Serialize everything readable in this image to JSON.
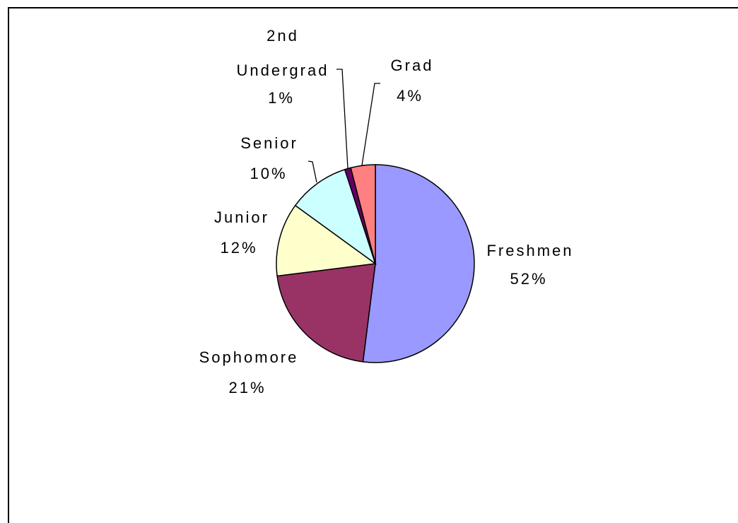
{
  "chart_data": {
    "type": "pie",
    "title": "",
    "slices": [
      {
        "label": "Freshmen",
        "value": 52,
        "value_label": "52%",
        "color": "#9999ff"
      },
      {
        "label": "Sophomore",
        "value": 21,
        "value_label": "21%",
        "color": "#993366"
      },
      {
        "label": "Junior",
        "value": 12,
        "value_label": "12%",
        "color": "#ffffcc"
      },
      {
        "label": "Senior",
        "value": 10,
        "value_label": "10%",
        "color": "#ccffff"
      },
      {
        "label": "2nd Undergrad",
        "value": 1,
        "value_label": "1%",
        "color": "#660066"
      },
      {
        "label": "Grad",
        "value": 4,
        "value_label": "4%",
        "color": "#ff8080"
      }
    ],
    "legend": "none"
  }
}
